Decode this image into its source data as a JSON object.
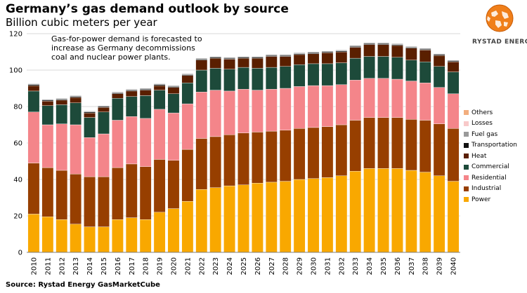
{
  "header": {
    "title": "Germany’s gas demand outlook by source",
    "subtitle": "Billion cubic meters per year"
  },
  "annotation": "Gas-for-power demand is forecasted to increase as Germany decommissions coal and nuclear power plants.",
  "source": "Source: Rystad Energy GasMarketCube",
  "logo": {
    "text": "RYSTAD ENERGY"
  },
  "colors": {
    "Power": "#F9A800",
    "Industrial": "#973F00",
    "Residential": "#F4858A",
    "Commercial": "#1D4A3A",
    "Heat": "#5A1F00",
    "Transportation": "#111111",
    "Fuel gas": "#9A9A9A",
    "Losses": "#F8C9C9",
    "Others": "#F2AE7E"
  },
  "chart_data": {
    "type": "bar",
    "stacked": true,
    "title": "Germany’s gas demand outlook by source",
    "ylabel": "Billion cubic meters per year",
    "xlabel": "",
    "ylim": [
      0,
      120
    ],
    "yticks": [
      0,
      20,
      40,
      60,
      80,
      100,
      120
    ],
    "legend_position": "right",
    "categories": [
      "2010",
      "2011",
      "2012",
      "2013",
      "2014",
      "2015",
      "2016",
      "2017",
      "2018",
      "2019",
      "2020",
      "2021",
      "2022",
      "2023",
      "2024",
      "2025",
      "2026",
      "2027",
      "2028",
      "2029",
      "2030",
      "2031",
      "2032",
      "2033",
      "2034",
      "2035",
      "2036",
      "2037",
      "2038",
      "2039",
      "2040"
    ],
    "series": [
      {
        "name": "Power",
        "values": [
          21,
          19.5,
          18,
          15.5,
          14,
          14,
          18,
          19,
          18,
          22,
          24,
          28,
          34.5,
          35.5,
          36.5,
          37,
          38,
          38.5,
          39,
          40,
          40.5,
          41,
          42,
          44.5,
          46,
          46,
          46,
          45,
          44,
          42,
          39
        ]
      },
      {
        "name": "Industrial",
        "values": [
          28,
          27,
          27,
          27.5,
          27.5,
          27.5,
          28.5,
          29.5,
          29,
          29,
          26.5,
          28.5,
          28,
          28,
          28,
          28.5,
          28,
          28,
          28,
          28,
          28,
          28,
          28,
          28,
          28,
          28,
          28,
          28,
          28.5,
          28.5,
          29
        ]
      },
      {
        "name": "Residential",
        "values": [
          28,
          23.5,
          25.5,
          27,
          21.5,
          23.5,
          26,
          26,
          26.5,
          27.5,
          26,
          25,
          25.5,
          25.5,
          24,
          24,
          23,
          23,
          23,
          23,
          23,
          22.5,
          22,
          22,
          21.5,
          21.5,
          21,
          21,
          20.5,
          20,
          19
        ]
      },
      {
        "name": "Commercial",
        "values": [
          11.5,
          10.5,
          10.5,
          12,
          11,
          12,
          12,
          11,
          12.5,
          10.5,
          10.5,
          11.5,
          12,
          12,
          12,
          12,
          12,
          12,
          12,
          12,
          12,
          12,
          12,
          12,
          12,
          12,
          12,
          11.5,
          11.5,
          11.5,
          12
        ]
      },
      {
        "name": "Heat",
        "values": [
          3,
          2.5,
          2.5,
          3,
          2.5,
          2.5,
          2.5,
          3,
          3,
          2.5,
          3.5,
          4,
          5.5,
          5.5,
          5.5,
          5,
          5.5,
          6,
          5.5,
          5.5,
          5.5,
          6,
          6,
          6,
          6.5,
          6.5,
          6.5,
          6.5,
          6.5,
          6,
          5.5
        ]
      },
      {
        "name": "Transportation",
        "values": [
          0.5,
          0.5,
          0.5,
          0.5,
          0.5,
          0.5,
          0.5,
          0.5,
          0.5,
          0.5,
          0.5,
          0.5,
          0.5,
          0.5,
          0.5,
          0.5,
          0.5,
          0.5,
          0.5,
          0.5,
          0.5,
          0.5,
          0.5,
          0.5,
          0.5,
          0.5,
          0.5,
          0.5,
          0.5,
          0.5,
          0.5
        ]
      },
      {
        "name": "Fuel gas",
        "values": [
          0.5,
          0.5,
          0.5,
          0.5,
          0.5,
          0.5,
          0.5,
          0.5,
          0.5,
          0.5,
          0.5,
          0.5,
          0.5,
          0.5,
          0.5,
          0.5,
          0.5,
          0.5,
          0.5,
          0.5,
          0.5,
          0.5,
          0.5,
          0.5,
          0.5,
          0.5,
          0.5,
          0.5,
          0.5,
          0.5,
          0.5
        ]
      },
      {
        "name": "Losses",
        "values": [
          0,
          0,
          0,
          0,
          0,
          0,
          0,
          0,
          0,
          0,
          0,
          0,
          0,
          0,
          0,
          0,
          0,
          0,
          0,
          0,
          0,
          0,
          0,
          0,
          0,
          0,
          0,
          0,
          0,
          0,
          0
        ]
      },
      {
        "name": "Others",
        "values": [
          0,
          0,
          0,
          0,
          0,
          0,
          0,
          0,
          0,
          0,
          0,
          0,
          0,
          0,
          0,
          0,
          0,
          0,
          0,
          0,
          0,
          0,
          0,
          0,
          0,
          0,
          0,
          0,
          0,
          0,
          0
        ]
      }
    ]
  }
}
